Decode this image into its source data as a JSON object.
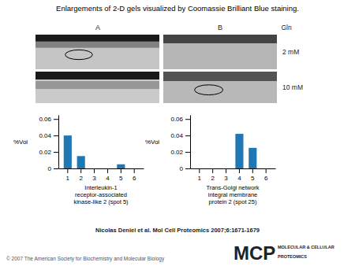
{
  "chart_data": [
    {
      "type": "bar",
      "title": "Enlargements of 2-D gels visualized by Coomassie Brilliant Blue staining.",
      "categories": [
        "1",
        "2",
        "3",
        "4",
        "5",
        "6"
      ],
      "values": [
        0.04,
        0.015,
        0.0,
        0.0,
        0.005,
        0.0
      ],
      "ylim": [
        0,
        0.065
      ],
      "yticks": [
        0,
        0.02,
        0.04,
        0.06
      ],
      "ylabel": "%Vol",
      "xlabel": "Interleukin-1\nreceptor-associated\nkinase-like 2 (spot 5)",
      "annotations": [
        "A",
        "B",
        "Gln",
        "2 mM",
        "10 mM",
        "Nicolas Deniel et al. Mol Cell Proteomics 2007;6:1671-1679",
        "© 2007 The American Society for Biochemistry and Molecular Biology",
        "MCP",
        "MOLECULAR & CELLULAR",
        "PROTEOMICS"
      ]
    },
    {
      "type": "bar",
      "categories": [
        "1",
        "2",
        "3",
        "4",
        "5",
        "6"
      ],
      "values": [
        0.0,
        0.0,
        0.0,
        0.042,
        0.025,
        0.0
      ],
      "ylim": [
        0,
        0.065
      ],
      "yticks": [
        0,
        0.02,
        0.04,
        0.06
      ],
      "ylabel": "%Vol",
      "xlabel": "Trans-Golgi network\nintegral membrane\nprotein 2 (spot 25)"
    }
  ]
}
